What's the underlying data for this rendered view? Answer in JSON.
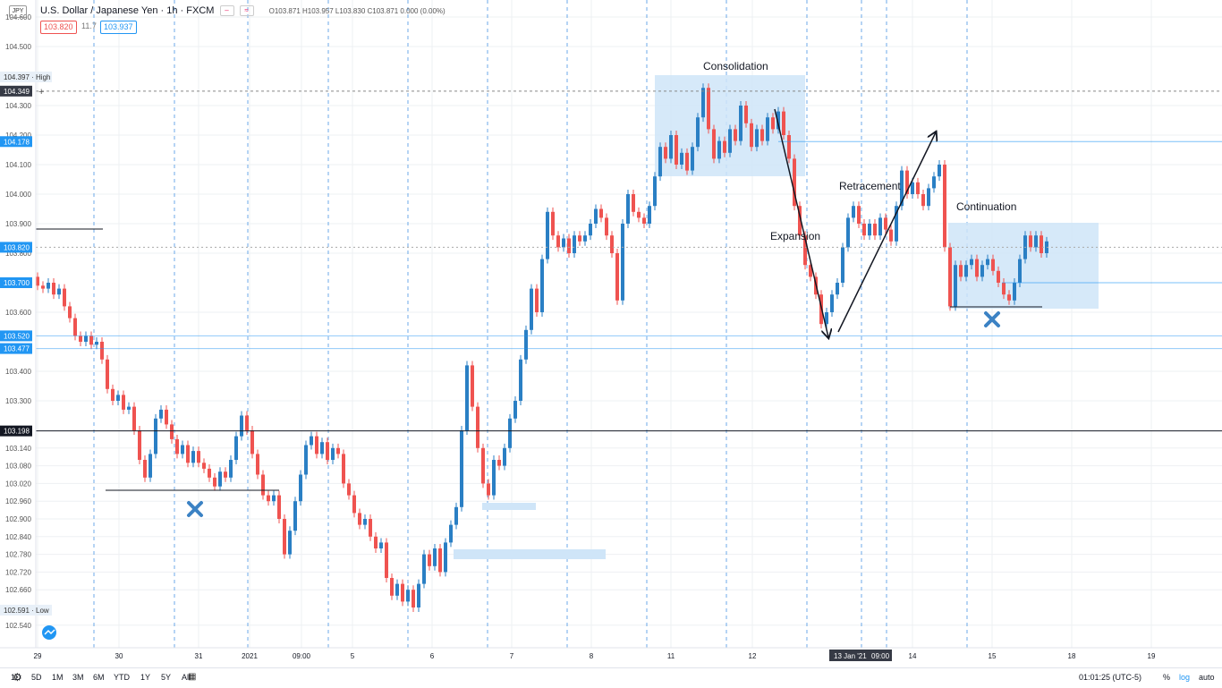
{
  "header": {
    "title": "U.S. Dollar / Japanese Yen · 1h · FXCM",
    "ohlc": "O103.871 H103.957 L103.830 C103.871 0.000 (0.00%)",
    "symbol_badge": "JPY",
    "ctl_minus": "–",
    "ctl_wave": "≈",
    "bid": "103.820",
    "spread": "11.7",
    "ask": "103.937"
  },
  "axis": {
    "y_ticks": [
      {
        "v": 104.6,
        "label": "104.600"
      },
      {
        "v": 104.5,
        "label": "104.500"
      },
      {
        "v": 104.3,
        "label": "104.300"
      },
      {
        "v": 104.2,
        "label": "104.200"
      },
      {
        "v": 104.1,
        "label": "104.100"
      },
      {
        "v": 104.0,
        "label": "104.000"
      },
      {
        "v": 103.9,
        "label": "103.900"
      },
      {
        "v": 103.8,
        "label": "103.800"
      },
      {
        "v": 103.6,
        "label": "103.600"
      },
      {
        "v": 103.4,
        "label": "103.400"
      },
      {
        "v": 103.3,
        "label": "103.300"
      },
      {
        "v": 103.14,
        "label": "103.140"
      },
      {
        "v": 103.08,
        "label": "103.080"
      },
      {
        "v": 103.02,
        "label": "103.020"
      },
      {
        "v": 102.96,
        "label": "102.960"
      },
      {
        "v": 102.9,
        "label": "102.900"
      },
      {
        "v": 102.84,
        "label": "102.840"
      },
      {
        "v": 102.78,
        "label": "102.780"
      },
      {
        "v": 102.72,
        "label": "102.720"
      },
      {
        "v": 102.66,
        "label": "102.660"
      },
      {
        "v": 102.54,
        "label": "102.540"
      }
    ],
    "x_ticks": [
      {
        "x": 42,
        "label": "29"
      },
      {
        "x": 133,
        "label": "30"
      },
      {
        "x": 222,
        "label": "31"
      },
      {
        "x": 279,
        "label": "2021"
      },
      {
        "x": 337,
        "label": "09:00"
      },
      {
        "x": 394,
        "label": "5"
      },
      {
        "x": 483,
        "label": "6"
      },
      {
        "x": 572,
        "label": "7"
      },
      {
        "x": 661,
        "label": "8"
      },
      {
        "x": 750,
        "label": "11"
      },
      {
        "x": 841,
        "label": "12"
      },
      {
        "x": 1020,
        "label": "14"
      },
      {
        "x": 1109,
        "label": "15"
      },
      {
        "x": 1198,
        "label": "18"
      },
      {
        "x": 1287,
        "label": "19"
      }
    ],
    "x_cursor_labels": [
      "13 Jan '21",
      "09:00"
    ],
    "price_badges": [
      {
        "v": 104.397,
        "label": "104.397",
        "suffix": "High",
        "bg": "#e8f0f8",
        "fg": "#333"
      },
      {
        "v": 104.349,
        "label": "104.349",
        "suffix": "",
        "bg": "#363a45",
        "fg": "#fff"
      },
      {
        "v": 104.178,
        "label": "104.178",
        "suffix": "",
        "bg": "#2196f3",
        "fg": "#fff"
      },
      {
        "v": 103.82,
        "label": "103.820",
        "suffix": "",
        "bg": "#2196f3",
        "fg": "#fff"
      },
      {
        "v": 103.7,
        "label": "103.700",
        "suffix": "",
        "bg": "#2196f3",
        "fg": "#fff"
      },
      {
        "v": 103.52,
        "label": "103.520",
        "suffix": "",
        "bg": "#2196f3",
        "fg": "#fff"
      },
      {
        "v": 103.477,
        "label": "103.477",
        "suffix": "",
        "bg": "#2196f3",
        "fg": "#fff"
      },
      {
        "v": 103.198,
        "label": "103.198",
        "suffix": "",
        "bg": "#131722",
        "fg": "#fff"
      },
      {
        "v": 102.591,
        "label": "102.591",
        "suffix": "Low",
        "bg": "#e8f0f8",
        "fg": "#333"
      }
    ]
  },
  "annotations": {
    "consolidation": "Consolidation",
    "expansion": "Expansion",
    "retracement": "Retracement",
    "continuation": "Continuation"
  },
  "bottom": {
    "timeframes": [
      "1D",
      "5D",
      "1M",
      "3M",
      "6M",
      "YTD",
      "1Y",
      "5Y",
      "All"
    ],
    "clock": "01:01:25 (UTC-5)",
    "pct": "%",
    "log": "log",
    "auto": "auto"
  },
  "colors": {
    "up": "#2a7fc4",
    "down": "#ef5350",
    "zone": "#cfe5f8",
    "grid_dash": "#2e86de",
    "accent": "#2196f3"
  },
  "chart_data": {
    "type": "candlestick",
    "title": "U.S. Dollar / Japanese Yen · 1h · FXCM",
    "ylim": [
      102.5,
      104.6
    ],
    "series": [
      {
        "values": [
          [
            42,
            103.72,
            103.69
          ],
          [
            48,
            103.69,
            103.68
          ],
          [
            54,
            103.68,
            103.7
          ],
          [
            60,
            103.7,
            103.66
          ],
          [
            66,
            103.66,
            103.68
          ],
          [
            72,
            103.68,
            103.62
          ],
          [
            78,
            103.62,
            103.58
          ],
          [
            84,
            103.58,
            103.52
          ],
          [
            90,
            103.52,
            103.5
          ],
          [
            96,
            103.5,
            103.52
          ],
          [
            102,
            103.52,
            103.49
          ],
          [
            108,
            103.49,
            103.5
          ],
          [
            114,
            103.5,
            103.44
          ],
          [
            120,
            103.44,
            103.34
          ],
          [
            126,
            103.34,
            103.3
          ],
          [
            132,
            103.3,
            103.32
          ],
          [
            138,
            103.32,
            103.27
          ],
          [
            144,
            103.27,
            103.28
          ],
          [
            150,
            103.28,
            103.2
          ],
          [
            156,
            103.2,
            103.1
          ],
          [
            162,
            103.1,
            103.04
          ],
          [
            168,
            103.04,
            103.12
          ],
          [
            174,
            103.12,
            103.24
          ],
          [
            180,
            103.24,
            103.27
          ],
          [
            186,
            103.27,
            103.22
          ],
          [
            192,
            103.22,
            103.17
          ],
          [
            198,
            103.17,
            103.12
          ],
          [
            204,
            103.12,
            103.15
          ],
          [
            210,
            103.15,
            103.09
          ],
          [
            216,
            103.09,
            103.13
          ],
          [
            222,
            103.13,
            103.09
          ],
          [
            228,
            103.09,
            103.07
          ],
          [
            234,
            103.07,
            103.04
          ],
          [
            240,
            103.04,
            103.01
          ],
          [
            246,
            103.01,
            103.06
          ],
          [
            252,
            103.06,
            103.04
          ],
          [
            258,
            103.04,
            103.1
          ],
          [
            264,
            103.1,
            103.18
          ],
          [
            270,
            103.18,
            103.25
          ],
          [
            276,
            103.25,
            103.2
          ],
          [
            282,
            103.2,
            103.12
          ],
          [
            288,
            103.12,
            103.05
          ],
          [
            294,
            103.05,
            102.98
          ],
          [
            300,
            102.98,
            102.96
          ],
          [
            306,
            102.96,
            102.98
          ],
          [
            312,
            102.98,
            102.9
          ],
          [
            318,
            102.9,
            102.78
          ],
          [
            324,
            102.78,
            102.86
          ],
          [
            330,
            102.86,
            102.96
          ],
          [
            336,
            102.96,
            103.05
          ],
          [
            342,
            103.05,
            103.15
          ],
          [
            348,
            103.15,
            103.18
          ],
          [
            354,
            103.18,
            103.12
          ],
          [
            360,
            103.12,
            103.16
          ],
          [
            366,
            103.16,
            103.1
          ],
          [
            372,
            103.1,
            103.14
          ],
          [
            378,
            103.14,
            103.12
          ],
          [
            384,
            103.12,
            103.02
          ],
          [
            390,
            103.02,
            102.98
          ],
          [
            396,
            102.98,
            102.92
          ],
          [
            402,
            102.92,
            102.88
          ],
          [
            408,
            102.88,
            102.9
          ],
          [
            414,
            102.9,
            102.84
          ],
          [
            420,
            102.84,
            102.8
          ],
          [
            426,
            102.8,
            102.82
          ],
          [
            432,
            102.82,
            102.7
          ],
          [
            438,
            102.7,
            102.64
          ],
          [
            444,
            102.64,
            102.68
          ],
          [
            450,
            102.68,
            102.62
          ],
          [
            456,
            102.62,
            102.66
          ],
          [
            462,
            102.66,
            102.6
          ],
          [
            468,
            102.6,
            102.68
          ],
          [
            474,
            102.68,
            102.78
          ],
          [
            480,
            102.78,
            102.74
          ],
          [
            486,
            102.74,
            102.8
          ],
          [
            492,
            102.8,
            102.72
          ],
          [
            498,
            102.72,
            102.82
          ],
          [
            504,
            102.82,
            102.88
          ],
          [
            510,
            102.88,
            102.94
          ],
          [
            516,
            102.94,
            103.2
          ],
          [
            522,
            103.2,
            103.42
          ],
          [
            528,
            103.42,
            103.28
          ],
          [
            534,
            103.28,
            103.14
          ],
          [
            540,
            103.14,
            103.02
          ],
          [
            546,
            103.02,
            102.98
          ],
          [
            552,
            102.98,
            103.1
          ],
          [
            558,
            103.1,
            103.08
          ],
          [
            564,
            103.08,
            103.14
          ],
          [
            570,
            103.14,
            103.24
          ],
          [
            576,
            103.24,
            103.3
          ],
          [
            582,
            103.3,
            103.44
          ],
          [
            588,
            103.44,
            103.54
          ],
          [
            594,
            103.54,
            103.68
          ],
          [
            600,
            103.68,
            103.6
          ],
          [
            606,
            103.6,
            103.78
          ],
          [
            612,
            103.78,
            103.94
          ],
          [
            618,
            103.94,
            103.86
          ],
          [
            624,
            103.86,
            103.82
          ],
          [
            630,
            103.82,
            103.85
          ],
          [
            636,
            103.85,
            103.8
          ],
          [
            642,
            103.8,
            103.86
          ],
          [
            648,
            103.86,
            103.84
          ],
          [
            654,
            103.84,
            103.86
          ],
          [
            660,
            103.86,
            103.9
          ],
          [
            666,
            103.9,
            103.95
          ],
          [
            672,
            103.95,
            103.92
          ],
          [
            678,
            103.92,
            103.86
          ],
          [
            684,
            103.86,
            103.8
          ],
          [
            690,
            103.8,
            103.64
          ],
          [
            696,
            103.64,
            103.9
          ],
          [
            702,
            103.9,
            104.0
          ],
          [
            708,
            104.0,
            103.94
          ],
          [
            714,
            103.94,
            103.92
          ],
          [
            720,
            103.92,
            103.9
          ],
          [
            726,
            103.9,
            103.96
          ],
          [
            732,
            103.96,
            104.06
          ],
          [
            738,
            104.06,
            104.16
          ],
          [
            744,
            104.16,
            104.12
          ],
          [
            750,
            104.12,
            104.2
          ],
          [
            756,
            104.2,
            104.1
          ],
          [
            762,
            104.1,
            104.14
          ],
          [
            768,
            104.14,
            104.08
          ],
          [
            774,
            104.08,
            104.16
          ],
          [
            780,
            104.16,
            104.26
          ],
          [
            786,
            104.26,
            104.36
          ],
          [
            792,
            104.36,
            104.22
          ],
          [
            798,
            104.22,
            104.12
          ],
          [
            804,
            104.12,
            104.18
          ],
          [
            810,
            104.18,
            104.14
          ],
          [
            816,
            104.14,
            104.22
          ],
          [
            822,
            104.22,
            104.18
          ],
          [
            828,
            104.18,
            104.3
          ],
          [
            834,
            104.3,
            104.24
          ],
          [
            840,
            104.24,
            104.16
          ],
          [
            846,
            104.16,
            104.22
          ],
          [
            852,
            104.22,
            104.18
          ],
          [
            858,
            104.18,
            104.26
          ],
          [
            864,
            104.26,
            104.22
          ],
          [
            870,
            104.22,
            104.28
          ],
          [
            876,
            104.28,
            104.2
          ],
          [
            882,
            104.2,
            104.12
          ],
          [
            888,
            104.12,
            103.96
          ],
          [
            894,
            103.96,
            103.86
          ],
          [
            900,
            103.86,
            103.76
          ],
          [
            906,
            103.76,
            103.72
          ],
          [
            912,
            103.72,
            103.66
          ],
          [
            918,
            103.66,
            103.56
          ],
          [
            924,
            103.56,
            103.6
          ],
          [
            930,
            103.6,
            103.66
          ],
          [
            936,
            103.66,
            103.7
          ],
          [
            942,
            103.7,
            103.82
          ],
          [
            948,
            103.82,
            103.92
          ],
          [
            954,
            103.92,
            103.96
          ],
          [
            960,
            103.96,
            103.9
          ],
          [
            966,
            103.9,
            103.86
          ],
          [
            972,
            103.86,
            103.9
          ],
          [
            978,
            103.9,
            103.86
          ],
          [
            984,
            103.86,
            103.92
          ],
          [
            990,
            103.92,
            103.88
          ],
          [
            996,
            103.88,
            103.84
          ],
          [
            1002,
            103.84,
            103.96
          ],
          [
            1008,
            103.96,
            104.08
          ],
          [
            1014,
            104.08,
            104.0
          ],
          [
            1020,
            104.0,
            104.04
          ],
          [
            1026,
            104.04,
            104.0
          ],
          [
            1032,
            104.0,
            103.96
          ],
          [
            1038,
            103.96,
            104.02
          ],
          [
            1044,
            104.02,
            104.06
          ],
          [
            1050,
            104.06,
            104.1
          ],
          [
            1056,
            104.1,
            103.82
          ],
          [
            1062,
            103.82,
            103.62
          ],
          [
            1068,
            103.62,
            103.76
          ],
          [
            1074,
            103.76,
            103.72
          ],
          [
            1080,
            103.72,
            103.76
          ],
          [
            1086,
            103.76,
            103.78
          ],
          [
            1092,
            103.78,
            103.72
          ],
          [
            1098,
            103.72,
            103.76
          ],
          [
            1104,
            103.76,
            103.78
          ],
          [
            1110,
            103.78,
            103.74
          ],
          [
            1116,
            103.74,
            103.7
          ],
          [
            1122,
            103.7,
            103.66
          ],
          [
            1128,
            103.66,
            103.64
          ],
          [
            1134,
            103.64,
            103.7
          ],
          [
            1140,
            103.7,
            103.78
          ],
          [
            1146,
            103.78,
            103.86
          ],
          [
            1152,
            103.86,
            103.82
          ],
          [
            1158,
            103.82,
            103.86
          ],
          [
            1164,
            103.86,
            103.8
          ],
          [
            1170,
            103.8,
            103.84
          ]
        ]
      }
    ]
  }
}
